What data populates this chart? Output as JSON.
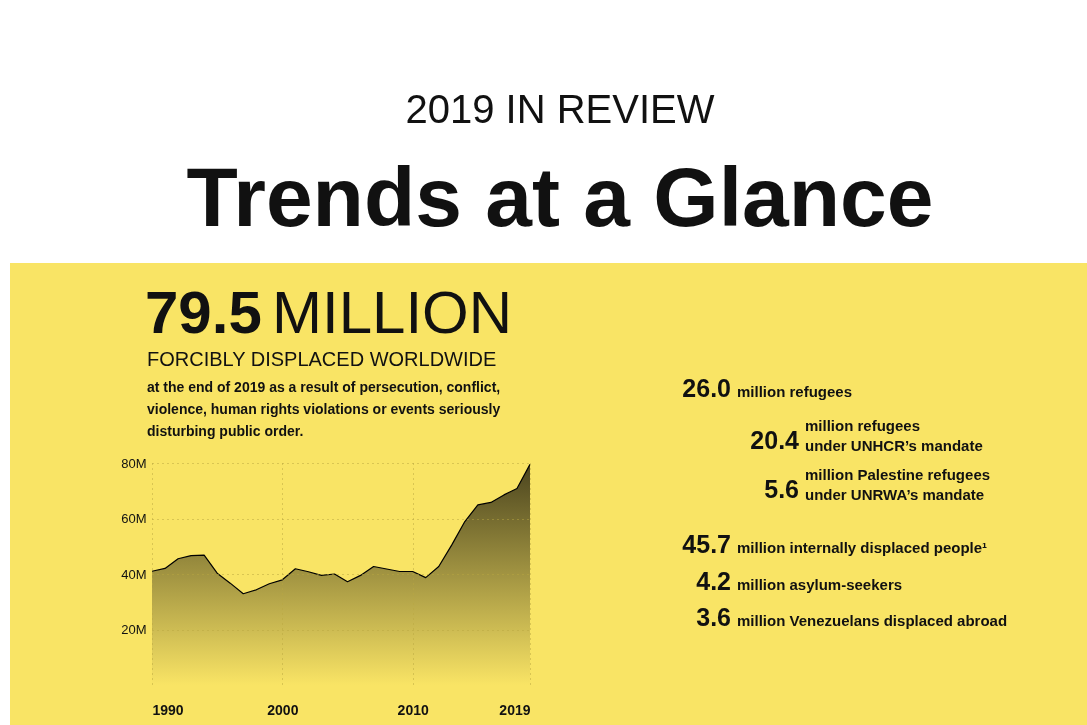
{
  "chart_data": {
    "type": "area",
    "subtitle": "2019 IN REVIEW",
    "title": "Trends at a Glance",
    "annotations": [
      "79.5 MILLION",
      "FORCIBLY DISPLACED WORLDWIDE",
      "at the end of 2019 as a result of persecution, conflict,\nviolence, human rights violations or events seriously\ndisturbing public order.",
      "26.0 million refugees",
      "20.4 million refugees\nunder UNHCR’s mandate",
      "5.6 million Palestine refugees\nunder UNRWA’s mandate",
      "45.7 million internally displaced people¹",
      "4.2 million asylum-seekers",
      "3.6 million Venezuelans displaced abroad"
    ],
    "x": [
      1990,
      1991,
      1992,
      1993,
      1994,
      1995,
      1996,
      1997,
      1998,
      1999,
      2000,
      2001,
      2002,
      2003,
      2004,
      2005,
      2006,
      2007,
      2008,
      2009,
      2010,
      2011,
      2012,
      2013,
      2014,
      2015,
      2016,
      2017,
      2018,
      2019
    ],
    "series": [
      {
        "color": "#000000",
        "values": [
          41,
          42,
          45.5,
          46.6,
          46.8,
          40.3,
          36.7,
          32.9,
          34.3,
          36.5,
          37.9,
          41.9,
          40.8,
          39.5,
          40,
          37.2,
          39.5,
          42.7,
          41.8,
          40.9,
          40.9,
          38.7,
          42.7,
          50.5,
          58.9,
          64.9,
          65.8,
          68.5,
          70.8,
          79.5
        ]
      }
    ],
    "xlim": [
      1990,
      2019
    ],
    "xticks": [
      1990,
      2000,
      2010,
      2019
    ],
    "ylim": [
      0,
      80
    ],
    "yticks": [
      {
        "value": 20,
        "label": "20M"
      },
      {
        "value": 40,
        "label": "40M"
      },
      {
        "value": 60,
        "label": "60M"
      },
      {
        "value": 80,
        "label": "80M"
      }
    ],
    "grid": true
  }
}
